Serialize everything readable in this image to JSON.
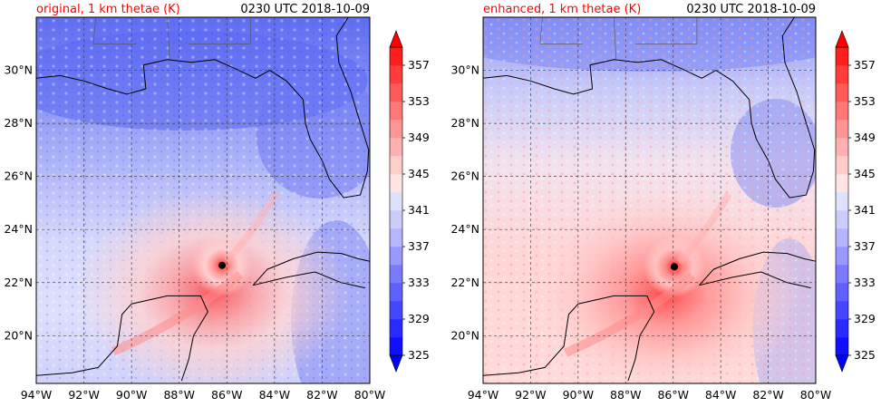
{
  "chart_data": [
    {
      "type": "heatmap",
      "title": "original, 1 km thetae (K)",
      "title_color": "#ff0000",
      "time_label": "0230 UTC 2018-10-09",
      "x_ticks": [
        "94°W",
        "92°W",
        "90°W",
        "88°W",
        "86°W",
        "84°W",
        "82°W",
        "80°W"
      ],
      "x_values": [
        -94,
        -92,
        -90,
        -88,
        -86,
        -84,
        -82,
        -80
      ],
      "y_ticks": [
        "30°N",
        "28°N",
        "26°N",
        "24°N",
        "22°N",
        "20°N"
      ],
      "y_values": [
        30,
        28,
        26,
        24,
        22,
        20
      ],
      "xlim": [
        -94,
        -80
      ],
      "ylim": [
        18.2,
        32
      ],
      "grid": true,
      "storm_center": {
        "lon": -86.2,
        "lat": 22.65
      },
      "colorbar_ticks": [
        "357",
        "353",
        "349",
        "345",
        "341",
        "337",
        "333",
        "329",
        "325"
      ],
      "colorbar_values": [
        357,
        353,
        349,
        345,
        341,
        337,
        333,
        329,
        325
      ],
      "colorbar_range": [
        325,
        359
      ]
    },
    {
      "type": "heatmap",
      "title": "enhanced, 1 km thetae (K)",
      "title_color": "#ff0000",
      "time_label": "0230 UTC 2018-10-09",
      "x_ticks": [
        "94°W",
        "92°W",
        "90°W",
        "88°W",
        "86°W",
        "84°W",
        "82°W",
        "80°W"
      ],
      "x_values": [
        -94,
        -92,
        -90,
        -88,
        -86,
        -84,
        -82,
        -80
      ],
      "y_ticks": [
        "30°N",
        "28°N",
        "26°N",
        "24°N",
        "22°N",
        "20°N"
      ],
      "y_values": [
        30,
        28,
        26,
        24,
        22,
        20
      ],
      "xlim": [
        -94,
        -80
      ],
      "ylim": [
        18.2,
        32
      ],
      "grid": true,
      "storm_center": {
        "lon": -85.95,
        "lat": 22.6
      },
      "colorbar_ticks": [
        "357",
        "353",
        "349",
        "345",
        "341",
        "337",
        "333",
        "329",
        "325"
      ],
      "colorbar_values": [
        357,
        353,
        349,
        345,
        341,
        337,
        333,
        329,
        325
      ],
      "colorbar_range": [
        325,
        359
      ]
    }
  ]
}
